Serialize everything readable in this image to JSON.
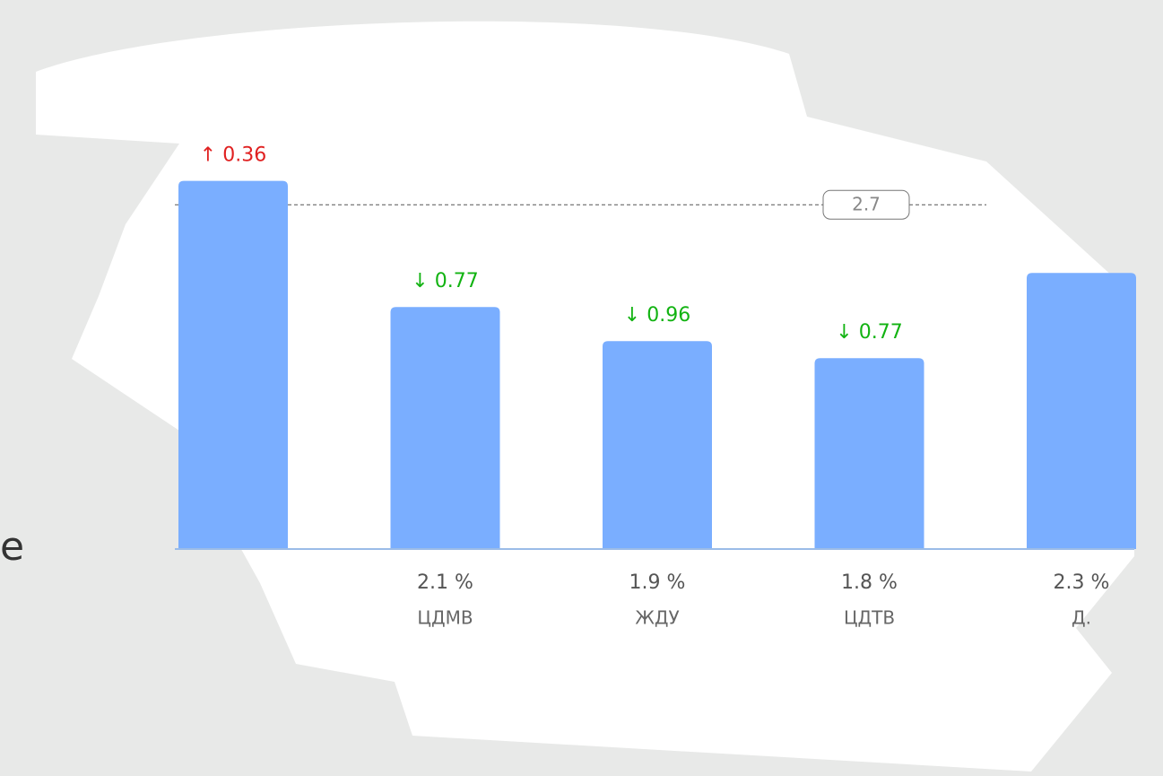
{
  "chart_data": {
    "type": "bar",
    "categories": [
      null,
      "ЦДМВ",
      "ЖДУ",
      "ЦДТВ",
      "Д."
    ],
    "values": [
      2.84,
      2.1,
      1.9,
      1.8,
      2.3
    ],
    "value_labels": [
      null,
      "2.1 %",
      "1.9 %",
      "1.8 %",
      "2.3 %"
    ],
    "deltas": [
      0.36,
      -0.77,
      -0.96,
      -0.77,
      null
    ],
    "delta_labels": [
      "↑ 0.36",
      "↓ 0.77",
      "↓ 0.96",
      "↓ 0.77",
      null
    ],
    "up_color": "#e02020",
    "down_color": "#12b312",
    "color": "#7aaeff",
    "ylim": [
      0.68,
      2.98
    ],
    "reference": {
      "value": 2.7,
      "label": "2.7"
    }
  },
  "side_text": "e"
}
